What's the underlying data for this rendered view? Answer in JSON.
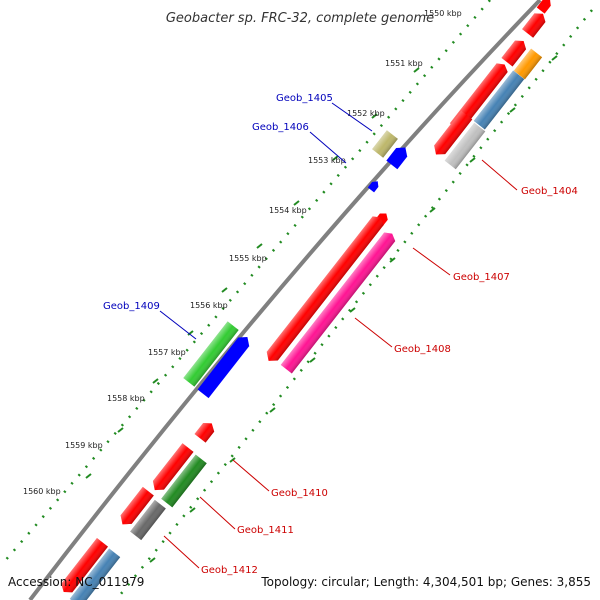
{
  "header": {
    "title": "Geobacter sp. FRC-32, complete genome"
  },
  "footer": {
    "accession": "Accession: NC_011979",
    "topology": "Topology: circular; Length: 4,304,501 bp; Genes: 3,855"
  },
  "ruler": {
    "top_label": "1550 kbp",
    "ticks": [
      "1551 kbp",
      "1552 kbp",
      "1553 kbp",
      "1554 kbp",
      "1555 kbp",
      "1556 kbp",
      "1557 kbp",
      "1558 kbp",
      "1559 kbp",
      "1560 kbp"
    ]
  },
  "gene_labels": {
    "left": [
      "Geob_1405",
      "Geob_1406",
      "Geob_1409"
    ],
    "right": [
      "Geob_1404",
      "Geob_1407",
      "Geob_1408",
      "Geob_1410",
      "Geob_1411",
      "Geob_1412"
    ]
  },
  "colors": {
    "backbone": "#808080",
    "cds_red": "#ff0000",
    "cds_pink": "#ff1493",
    "cds_blue": "#0000ff",
    "cds_green": "#33cc33",
    "cds_darkgreen": "#228b22",
    "cds_steel": "#4682b4",
    "cds_silver": "#c0c0c0",
    "cds_olive": "#bdb76b",
    "cds_orange": "#ff9900",
    "cds_gray": "#696969",
    "dots": "#228b22",
    "label_red": "#cc0000",
    "label_blue": "#0000bb"
  }
}
